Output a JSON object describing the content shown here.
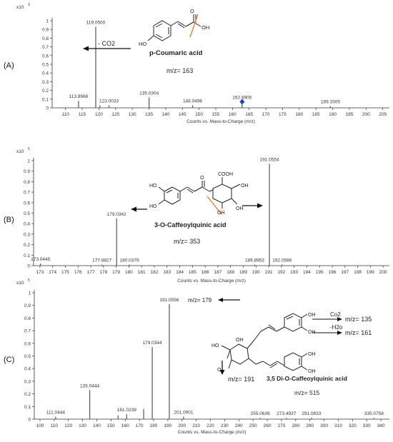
{
  "figure": {
    "xlabel": "Counts vs. Mass-to-Charge (m/z)"
  },
  "chart_data": [
    {
      "type": "bar",
      "panel_label": "(A)",
      "scale_label": "x10",
      "scale_exp": "3",
      "xlabel": "Counts vs. Mass-to-Charge (m/z)",
      "xlim": [
        106,
        207
      ],
      "xticks": [
        110,
        115,
        120,
        125,
        130,
        135,
        140,
        145,
        150,
        155,
        160,
        165,
        170,
        175,
        180,
        185,
        190,
        195,
        200,
        205
      ],
      "ylim": [
        0,
        1
      ],
      "yticks": [
        0,
        0.1,
        0.2,
        0.3,
        0.4,
        0.5,
        0.6,
        0.7,
        0.8,
        0.9,
        1
      ],
      "peaks": [
        {
          "x": 113.8966,
          "y": 0.08,
          "label": "113.8966"
        },
        {
          "x": 119.05,
          "y": 0.93,
          "label": "119.0500"
        },
        {
          "x": 120.3,
          "y": 0.03,
          "label": ""
        },
        {
          "x": 123.0033,
          "y": 0.03,
          "label": "123.0033"
        },
        {
          "x": 135.0304,
          "y": 0.12,
          "label": "135.0304"
        },
        {
          "x": 148.0496,
          "y": 0.03,
          "label": "148.0496"
        },
        {
          "x": 162.8905,
          "y": 0.07,
          "label": "162.8905"
        },
        {
          "x": 189.3305,
          "y": 0.02,
          "label": "189.3305"
        }
      ],
      "marker": {
        "x": 162.8905,
        "y": 0.07,
        "color": "#1f3fbf"
      },
      "annotations": {
        "arrow_text": "- CO2",
        "compound": "p-Coumaric acid",
        "mz": "m/z= 163"
      }
    },
    {
      "type": "bar",
      "panel_label": "(B)",
      "scale_label": "x10",
      "scale_exp": "5",
      "xlabel": "Counts vs. Mass-to-Charge (m/z)",
      "xlim": [
        172.5,
        200.5
      ],
      "xticks": [
        173,
        174,
        175,
        176,
        177,
        178,
        179,
        180,
        181,
        182,
        183,
        184,
        185,
        186,
        187,
        188,
        189,
        190,
        191,
        192,
        193,
        194,
        195,
        196,
        197,
        198,
        199,
        200
      ],
      "ylim": [
        0,
        1
      ],
      "yticks": [
        0,
        0.1,
        0.2,
        0.3,
        0.4,
        0.5,
        0.6,
        0.7,
        0.8,
        0.9,
        1
      ],
      "peaks": [
        {
          "x": 173.0445,
          "y": 0.02,
          "label": "173.0445"
        },
        {
          "x": 177.8827,
          "y": 0.01,
          "label": "177.8827"
        },
        {
          "x": 179.0342,
          "y": 0.45,
          "label": "179.0342"
        },
        {
          "x": 180.0379,
          "y": 0.01,
          "label": "180.0379"
        },
        {
          "x": 189.8953,
          "y": 0.01,
          "label": "189.8953"
        },
        {
          "x": 191.0554,
          "y": 0.97,
          "label": "191.0554"
        },
        {
          "x": 192.0586,
          "y": 0.01,
          "label": "192.0586"
        }
      ],
      "annotations": {
        "compound": "3-O-Caffeoylquinic acid",
        "mz": "m/z= 353"
      }
    },
    {
      "type": "bar",
      "panel_label": "(C)",
      "scale_label": "x10",
      "scale_exp": "5",
      "xlabel": "Counts vs. Mass-to-Charge (m/z)",
      "xlim": [
        96,
        346
      ],
      "xticks": [
        100,
        110,
        120,
        130,
        140,
        150,
        160,
        170,
        180,
        190,
        200,
        210,
        220,
        230,
        240,
        250,
        260,
        270,
        280,
        290,
        300,
        310,
        320,
        330,
        340
      ],
      "ylim": [
        0,
        1
      ],
      "yticks": [
        0,
        0.1,
        0.2,
        0.3,
        0.4,
        0.5,
        0.6,
        0.7,
        0.8,
        0.9,
        1
      ],
      "peaks": [
        {
          "x": 111.0444,
          "y": 0.02,
          "label": "111.0444"
        },
        {
          "x": 135.0444,
          "y": 0.23,
          "label": "135.0444"
        },
        {
          "x": 155.0,
          "y": 0.03,
          "label": ""
        },
        {
          "x": 161.0239,
          "y": 0.04,
          "label": "161.0239"
        },
        {
          "x": 173.0,
          "y": 0.08,
          "label": ""
        },
        {
          "x": 179.0344,
          "y": 0.57,
          "label": "179.0344"
        },
        {
          "x": 191.0556,
          "y": 0.91,
          "label": "191.0556"
        },
        {
          "x": 201.0901,
          "y": 0.02,
          "label": "201.0901"
        },
        {
          "x": 255.0636,
          "y": 0.01,
          "label": "255.0636"
        },
        {
          "x": 273.4937,
          "y": 0.01,
          "label": "273.4937"
        },
        {
          "x": 291.0833,
          "y": 0.01,
          "label": "291.0833"
        },
        {
          "x": 335.0758,
          "y": 0.01,
          "label": "335.0758"
        }
      ],
      "annotations": {
        "mz179": "m/z= 179",
        "mz191": "m/z= 191",
        "co2": "Co2",
        "mz135": "m/z= 135",
        "h2o": "-H2o",
        "mz161": "m/z= 161",
        "compound": "3,5 Di-O-Caffeoylquinic acid",
        "mz": "m/z= 515"
      }
    }
  ]
}
